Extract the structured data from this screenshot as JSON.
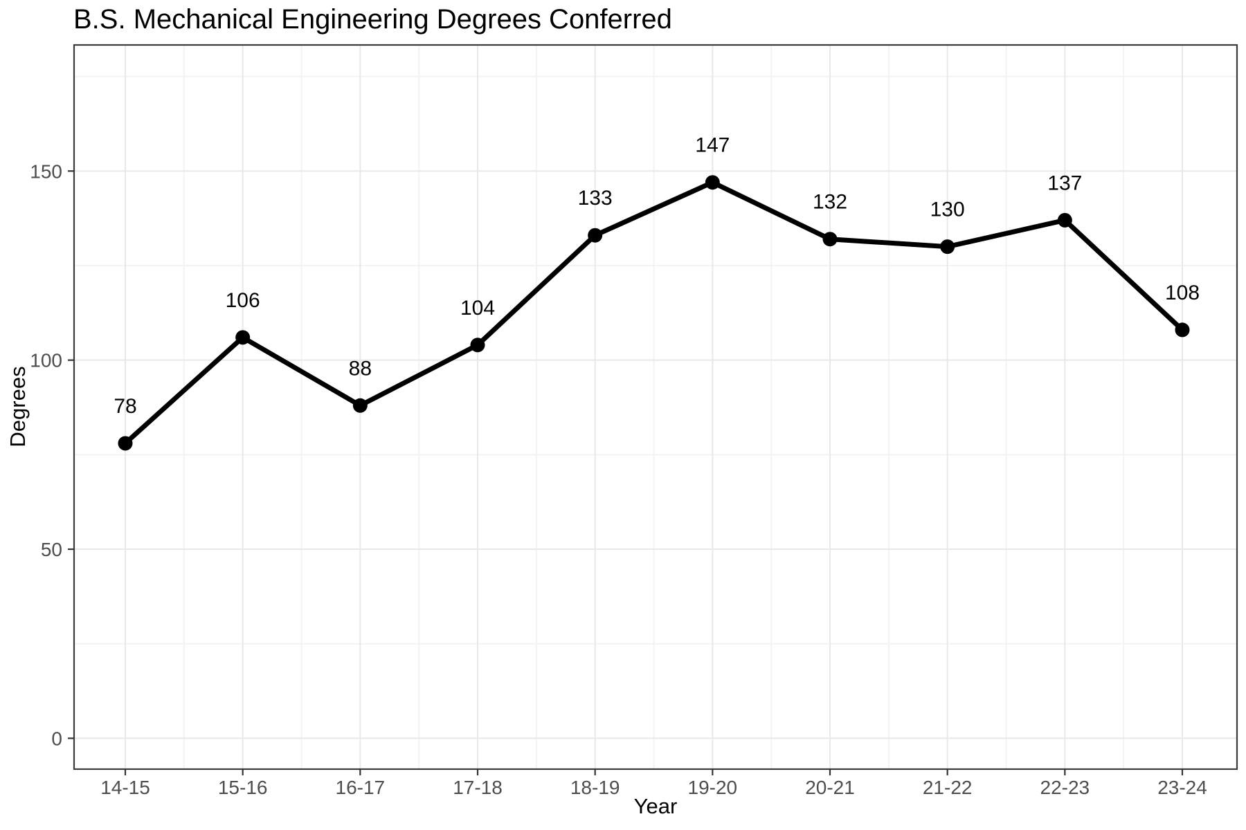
{
  "chart_data": {
    "type": "line",
    "title": "B.S. Mechanical Engineering Degrees Conferred",
    "xlabel": "Year",
    "ylabel": "Degrees",
    "categories": [
      "14-15",
      "15-16",
      "16-17",
      "17-18",
      "18-19",
      "19-20",
      "20-21",
      "21-22",
      "22-23",
      "23-24"
    ],
    "values": [
      78,
      106,
      88,
      104,
      133,
      147,
      132,
      130,
      137,
      108
    ],
    "point_labels": [
      "78",
      "106",
      "88",
      "104",
      "133",
      "147",
      "132",
      "130",
      "137",
      "108"
    ],
    "y_ticks": [
      0,
      50,
      100,
      150
    ],
    "y_tick_labels": [
      "0",
      "50",
      "100",
      "150"
    ],
    "y_minor_ticks": [
      25,
      75,
      125,
      175
    ],
    "ylim": [
      -8.2,
      183.4
    ],
    "grid": "major+minor",
    "legend": "none",
    "colors": {
      "line": "#000000",
      "point": "#000000",
      "data_label": "#000000",
      "title": "#000000",
      "axis_title": "#000000",
      "axis_text": "#4d4d4d",
      "tick_mark": "#333333",
      "panel_border": "#3a3a3a",
      "grid_major": "#e8e8e8",
      "grid_minor": "#f3f3f3",
      "background": "#ffffff"
    }
  }
}
